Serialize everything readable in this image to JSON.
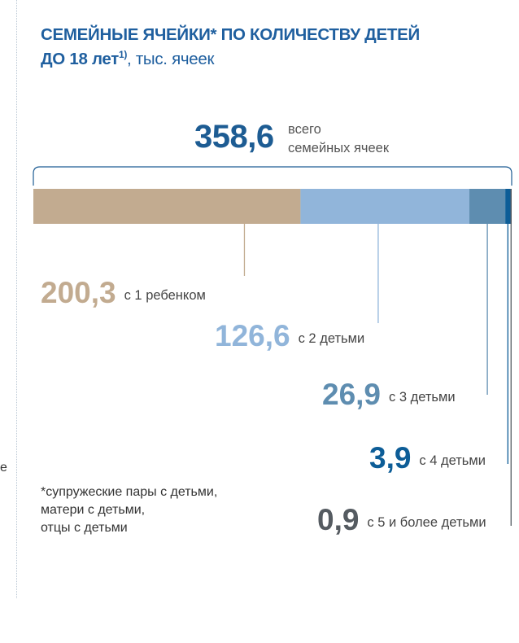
{
  "title": {
    "line1": "СЕМЕЙНЫЕ ЯЧЕЙКИ* ПО КОЛИЧЕСТВУ ДЕТЕЙ",
    "line2": "ДО 18 лет",
    "superscript": "1)",
    "unit": ", тыс. ячеек"
  },
  "total": {
    "value": "358,6",
    "caption_line1": "всего",
    "caption_line2": "семейных ячеек"
  },
  "edge_text": "е",
  "footnote": {
    "line1": "*супружеские пары с детьми,",
    "line2": "матери с детьми,",
    "line3": "отцы с детьми"
  },
  "colors": {
    "one_child": "#c2ab90",
    "two_children": "#91b5da",
    "three_children": "#5e8db0",
    "four_children": "#0d5d97",
    "five_plus": "#555b61"
  },
  "chart_data": {
    "type": "bar",
    "orientation": "horizontal-stacked",
    "title": "СЕМЕЙНЫЕ ЯЧЕЙКИ* ПО КОЛИЧЕСТВУ ДЕТЕЙ ДО 18 лет1), тыс. ячеек",
    "total": 358.6,
    "categories": [
      "с 1 ребенком",
      "с 2 детьми",
      "с 3 детьми",
      "с 4 детьми",
      "с 5 и более детьми"
    ],
    "values": [
      200.3,
      126.6,
      26.9,
      3.9,
      0.9
    ],
    "value_labels": [
      "200,3",
      "126,6",
      "26,9",
      "3,9",
      "0,9"
    ],
    "colors": [
      "#c2ab90",
      "#91b5da",
      "#5e8db0",
      "#0d5d97",
      "#555b61"
    ],
    "text_colors": [
      "#c2ab90",
      "#91b5da",
      "#5e8db0",
      "#0d5d97",
      "#555b61"
    ]
  }
}
